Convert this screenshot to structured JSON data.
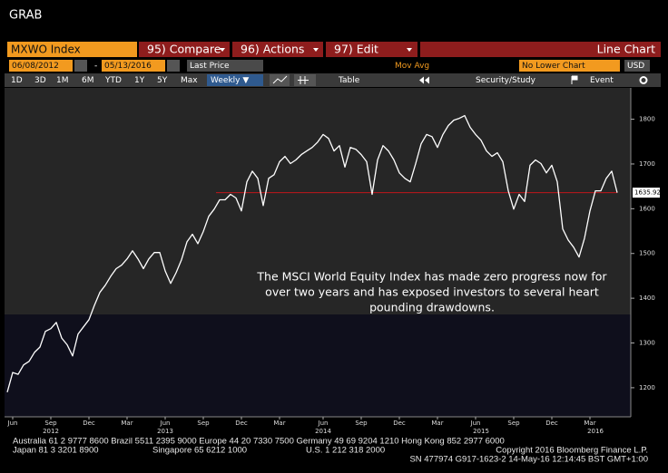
{
  "ui": {
    "window_title": "GRAB",
    "ticker": "MXWO Index",
    "menu": [
      "95) Compare",
      "96) Actions",
      "97) Edit"
    ],
    "chart_type_label": "Line Chart",
    "start_date": "06/08/2012",
    "date_separator": "-",
    "end_date": "05/13/2016",
    "field": "Last Price",
    "study": "Mov Avg",
    "lower_chart": "No Lower Chart",
    "currency": "USD",
    "periods": [
      "1D",
      "3D",
      "1M",
      "6M",
      "YTD",
      "1Y",
      "5Y",
      "Max"
    ],
    "frequency": "Weekly ▼",
    "table": "Table",
    "security_study": "Security/Study",
    "event": "Event",
    "footer": [
      "Australia 61 2 9777 8600 Brazil 5511 2395 9000 Europe 44 20 7330 7500 Germany 49 69 9204 1210 Hong Kong 852 2977 6000",
      "Japan 81 3 3201 8900",
      "Singapore 65 6212 1000",
      "U.S. 1 212 318 2000",
      "Copyright 2016 Bloomberg Finance L.P.",
      "SN 477974 G917-1623-2 14-May-16 12:14:45 BST  GMT+1:00"
    ]
  },
  "chart_data": {
    "type": "line",
    "color": "#ffffff",
    "annotation": [
      "The MSCI World Equity Index has made zero progress now for",
      "over two years and has exposed investors to several heart",
      "pounding drawdowns."
    ],
    "categories": [
      null,
      "Jun",
      null,
      null,
      null,
      null,
      null,
      null,
      "Sep",
      null,
      null,
      null,
      null,
      null,
      null,
      "Dec",
      null,
      null,
      null,
      null,
      null,
      null,
      "Mar",
      null,
      null,
      null,
      null,
      null,
      null,
      "Jun",
      null,
      null,
      null,
      null,
      null,
      null,
      "Sep",
      null,
      null,
      null,
      null,
      null,
      null,
      "Dec",
      null,
      null,
      null,
      null,
      null,
      null,
      "Mar",
      null,
      null,
      null,
      null,
      null,
      null,
      null,
      "Jun",
      null,
      null,
      null,
      null,
      null,
      null,
      "Sep",
      null,
      null,
      null,
      null,
      null,
      null,
      "Dec",
      null,
      null,
      null,
      null,
      null,
      null,
      "Mar",
      null,
      null,
      null,
      null,
      null,
      null,
      "Jun",
      null,
      null,
      null,
      null,
      null,
      null,
      "Sep",
      null,
      null,
      null,
      null,
      null,
      null,
      "Dec",
      null,
      null,
      null,
      null,
      null,
      null,
      "Mar",
      null,
      null,
      null,
      null,
      null
    ],
    "category_years": [
      null,
      null,
      null,
      null,
      null,
      null,
      null,
      null,
      "2012",
      null,
      null,
      null,
      null,
      null,
      null,
      null,
      null,
      null,
      null,
      null,
      null,
      null,
      null,
      null,
      null,
      null,
      null,
      null,
      null,
      "2013",
      null,
      null,
      null,
      null,
      null,
      null,
      null,
      null,
      null,
      null,
      null,
      null,
      null,
      null,
      null,
      null,
      null,
      null,
      null,
      null,
      null,
      null,
      null,
      null,
      null,
      null,
      null,
      null,
      "2014",
      null,
      null,
      null,
      null,
      null,
      null,
      null,
      null,
      null,
      null,
      null,
      null,
      null,
      null,
      null,
      null,
      null,
      null,
      null,
      null,
      null,
      null,
      null,
      null,
      null,
      null,
      null,
      null,
      "2015",
      null,
      null,
      null,
      null,
      null,
      null,
      null,
      null,
      null,
      null,
      null,
      null,
      null,
      null,
      null,
      null,
      null,
      null,
      null,
      null,
      "2016",
      null,
      null,
      null,
      null,
      null
    ],
    "values": [
      1190,
      1234,
      1230,
      1251,
      1259,
      1279,
      1291,
      1326,
      1332,
      1346,
      1311,
      1296,
      1271,
      1320,
      1336,
      1352,
      1384,
      1413,
      1429,
      1449,
      1466,
      1474,
      1488,
      1506,
      1488,
      1466,
      1488,
      1502,
      1502,
      1461,
      1433,
      1457,
      1486,
      1526,
      1543,
      1522,
      1549,
      1583,
      1599,
      1620,
      1620,
      1632,
      1624,
      1595,
      1660,
      1684,
      1668,
      1607,
      1668,
      1676,
      1705,
      1717,
      1701,
      1709,
      1721,
      1729,
      1737,
      1749,
      1766,
      1757,
      1729,
      1741,
      1693,
      1737,
      1733,
      1721,
      1705,
      1632,
      1709,
      1741,
      1729,
      1709,
      1680,
      1668,
      1660,
      1701,
      1745,
      1766,
      1761,
      1737,
      1766,
      1786,
      1798,
      1802,
      1808,
      1782,
      1766,
      1753,
      1729,
      1717,
      1725,
      1705,
      1640,
      1599,
      1632,
      1616,
      1697,
      1709,
      1701,
      1680,
      1697,
      1660,
      1555,
      1530,
      1514,
      1492,
      1534,
      1595,
      1640,
      1640,
      1668,
      1684,
      1635.92
    ],
    "last_value": 1635.92,
    "last_value_color": "#c0161b",
    "ylim": [
      1135,
      1870
    ],
    "yticks": [
      1200,
      1300,
      1400,
      1500,
      1600,
      1700,
      1800
    ],
    "grid": false
  }
}
